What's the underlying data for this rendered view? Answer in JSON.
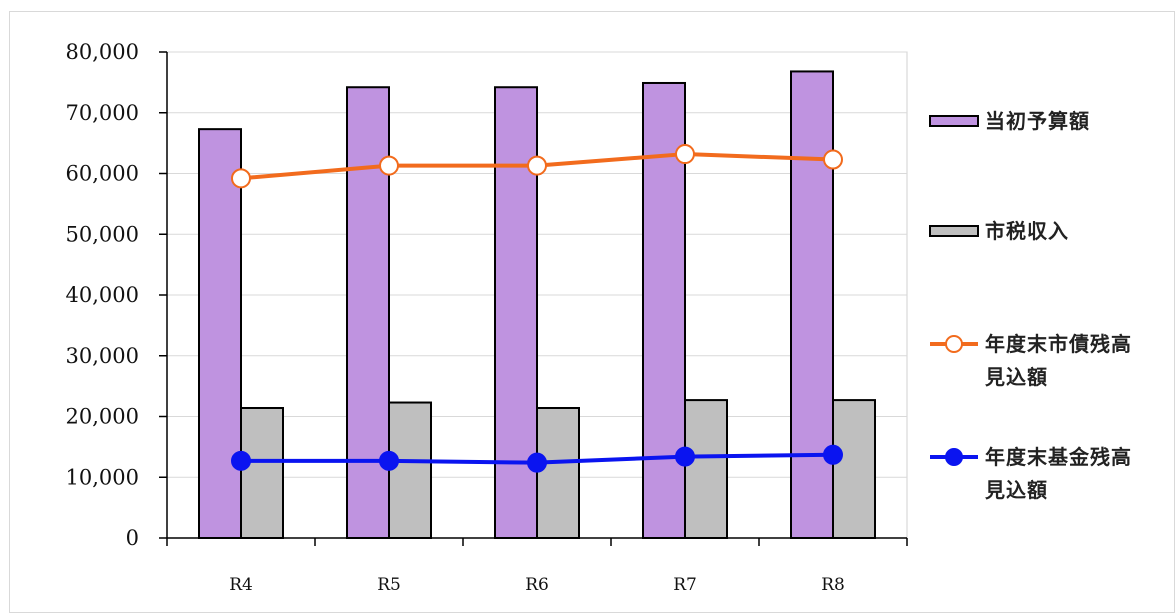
{
  "chart_data": {
    "type": "bar",
    "title": "",
    "xlabel": "",
    "ylabel": "",
    "categories": [
      "R4",
      "R5",
      "R6",
      "R7",
      "R8"
    ],
    "ylim": [
      0,
      80000
    ],
    "yticks": [
      0,
      10000,
      20000,
      30000,
      40000,
      50000,
      60000,
      70000,
      80000
    ],
    "ytick_labels": [
      "0",
      "10,000",
      "20,000",
      "30,000",
      "40,000",
      "50,000",
      "60,000",
      "70,000",
      "80,000"
    ],
    "grid": true,
    "legend_position": "right",
    "series": [
      {
        "name": "当初予算額",
        "kind": "bar",
        "color": "#bf93e0",
        "values": [
          67300,
          74200,
          74200,
          74900,
          76800
        ]
      },
      {
        "name": "市税収入",
        "kind": "bar",
        "color": "#bfbfbf",
        "values": [
          21400,
          22300,
          21400,
          22700,
          22700
        ]
      },
      {
        "name": "年度末市債残高見込額",
        "kind": "line",
        "color": "#f26b1d",
        "marker": "open-circle",
        "values": [
          59200,
          61300,
          61300,
          63200,
          62300
        ]
      },
      {
        "name": "年度末基金残高見込額",
        "kind": "line",
        "color": "#0a14f0",
        "marker": "filled-circle",
        "values": [
          12700,
          12700,
          12400,
          13400,
          13700
        ]
      }
    ],
    "legend_labels": [
      [
        "当初予算額"
      ],
      [
        "市税収入"
      ],
      [
        "年度末市債残高",
        "見込額"
      ],
      [
        "年度末基金残高",
        "見込額"
      ]
    ]
  }
}
